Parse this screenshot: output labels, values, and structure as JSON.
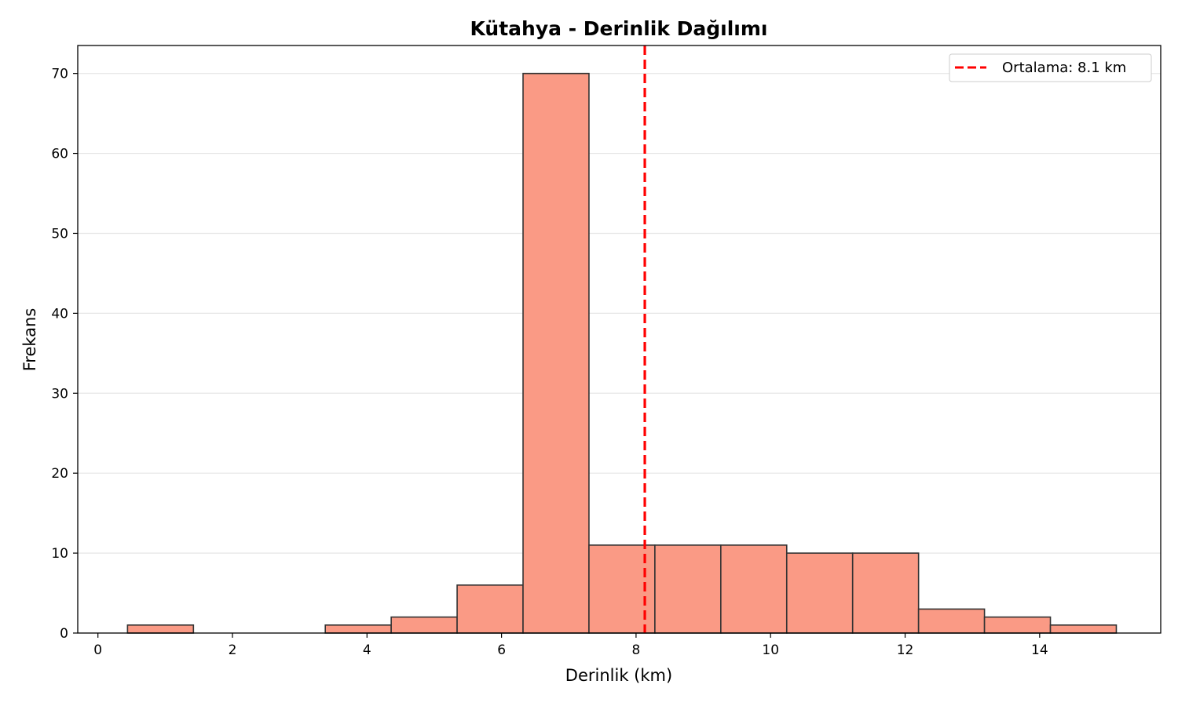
{
  "chart_data": {
    "type": "bar",
    "title": "Kütahya - Derinlik Dağılımı",
    "xlabel": "Derinlik (km)",
    "ylabel": "Frekans",
    "xlim": [
      -0.3,
      15.8
    ],
    "ylim": [
      0,
      73.5
    ],
    "xticks": [
      0,
      2,
      4,
      6,
      8,
      10,
      12,
      14
    ],
    "yticks": [
      0,
      10,
      20,
      30,
      40,
      50,
      60,
      70
    ],
    "bins": [
      {
        "x0": 0.44,
        "x1": 1.42,
        "count": 1
      },
      {
        "x0": 1.42,
        "x1": 2.4,
        "count": 0
      },
      {
        "x0": 2.4,
        "x1": 3.38,
        "count": 0
      },
      {
        "x0": 3.38,
        "x1": 4.36,
        "count": 1
      },
      {
        "x0": 4.36,
        "x1": 5.34,
        "count": 2
      },
      {
        "x0": 5.34,
        "x1": 6.32,
        "count": 6
      },
      {
        "x0": 6.32,
        "x1": 7.3,
        "count": 70
      },
      {
        "x0": 7.3,
        "x1": 8.28,
        "count": 11
      },
      {
        "x0": 8.28,
        "x1": 9.26,
        "count": 11
      },
      {
        "x0": 9.26,
        "x1": 10.24,
        "count": 11
      },
      {
        "x0": 10.24,
        "x1": 11.22,
        "count": 10
      },
      {
        "x0": 11.22,
        "x1": 12.2,
        "count": 10
      },
      {
        "x0": 12.2,
        "x1": 13.18,
        "count": 3
      },
      {
        "x0": 13.18,
        "x1": 14.16,
        "count": 2
      },
      {
        "x0": 14.16,
        "x1": 15.14,
        "count": 1
      }
    ],
    "mean_line": {
      "x": 8.13,
      "label": "Ortalama: 8.1 km",
      "color": "#ff0000",
      "style": "dashed"
    },
    "bar_color": "#fa9a85",
    "bar_edge_color": "#333333",
    "grid": {
      "axis": "y",
      "on": true
    },
    "legend": {
      "position": "top-right",
      "entries": [
        "Ortalama: 8.1 km"
      ]
    }
  }
}
